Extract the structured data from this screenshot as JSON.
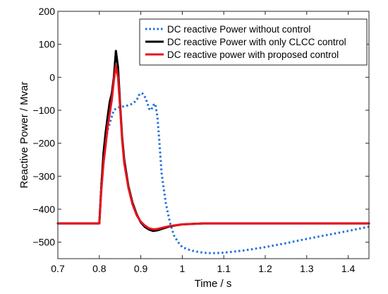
{
  "chart_data": {
    "type": "line",
    "xlabel": "Time / s",
    "ylabel": "Reactive Power / Mvar",
    "xlim": [
      0.7,
      1.45
    ],
    "ylim": [
      -550,
      200
    ],
    "xticks": [
      0.7,
      0.8,
      0.9,
      1,
      1.1,
      1.2,
      1.3,
      1.4
    ],
    "xtick_labels": [
      "0.7",
      "0.8",
      "0.9",
      "1",
      "1.1",
      "1.2",
      "1.3",
      "1.4"
    ],
    "yticks": [
      200,
      100,
      0,
      -100,
      -200,
      -300,
      -400,
      -500
    ],
    "ytick_labels": [
      "200",
      "100",
      "0",
      "−100",
      "−200",
      "−300",
      "−400",
      "−500"
    ],
    "grid": false,
    "legend_position": "top-right",
    "series": [
      {
        "name": "DC reactive Power without control",
        "color": "#1f6fdc",
        "style": "dotted",
        "x": [
          0.7,
          0.79,
          0.8,
          0.805,
          0.81,
          0.815,
          0.82,
          0.825,
          0.83,
          0.835,
          0.84,
          0.845,
          0.85,
          0.86,
          0.87,
          0.88,
          0.89,
          0.895,
          0.9,
          0.905,
          0.91,
          0.915,
          0.92,
          0.925,
          0.93,
          0.935,
          0.94,
          0.945,
          0.95,
          0.96,
          0.97,
          0.98,
          0.99,
          1.0,
          1.02,
          1.04,
          1.06,
          1.08,
          1.1,
          1.15,
          1.2,
          1.25,
          1.3,
          1.35,
          1.4,
          1.45
        ],
        "y": [
          -443,
          -443,
          -443,
          -320,
          -260,
          -200,
          -160,
          -140,
          -120,
          -100,
          -95,
          -92,
          -90,
          -88,
          -85,
          -80,
          -70,
          -55,
          -48,
          -50,
          -60,
          -75,
          -95,
          -100,
          -85,
          -80,
          -120,
          -200,
          -290,
          -380,
          -440,
          -480,
          -500,
          -515,
          -525,
          -530,
          -533,
          -533,
          -532,
          -525,
          -515,
          -503,
          -490,
          -478,
          -466,
          -453
        ]
      },
      {
        "name": "DC reactive Power with only CLCC control",
        "color": "#000000",
        "style": "solid",
        "x": [
          0.7,
          0.795,
          0.8,
          0.805,
          0.81,
          0.815,
          0.82,
          0.825,
          0.83,
          0.835,
          0.84,
          0.845,
          0.85,
          0.855,
          0.86,
          0.87,
          0.88,
          0.89,
          0.9,
          0.91,
          0.92,
          0.93,
          0.94,
          0.95,
          0.97,
          1.0,
          1.05,
          1.1,
          1.2,
          1.3,
          1.45
        ],
        "y": [
          -443,
          -443,
          -443,
          -330,
          -230,
          -170,
          -120,
          -75,
          -50,
          0,
          80,
          30,
          -80,
          -180,
          -250,
          -330,
          -380,
          -415,
          -440,
          -454,
          -462,
          -466,
          -464,
          -460,
          -452,
          -446,
          -443,
          -443,
          -443,
          -443,
          -443
        ]
      },
      {
        "name": "DC reactive power with proposed control",
        "color": "#e8111c",
        "style": "solid",
        "x": [
          0.7,
          0.795,
          0.8,
          0.805,
          0.81,
          0.815,
          0.82,
          0.825,
          0.83,
          0.835,
          0.84,
          0.845,
          0.85,
          0.855,
          0.86,
          0.87,
          0.88,
          0.89,
          0.9,
          0.91,
          0.92,
          0.93,
          0.94,
          0.95,
          0.97,
          1.0,
          1.05,
          1.1,
          1.2,
          1.3,
          1.45
        ],
        "y": [
          -443,
          -443,
          -443,
          -340,
          -260,
          -210,
          -150,
          -110,
          -70,
          -10,
          35,
          0,
          -90,
          -190,
          -260,
          -335,
          -385,
          -418,
          -438,
          -450,
          -458,
          -461,
          -460,
          -457,
          -451,
          -446,
          -443,
          -443,
          -443,
          -443,
          -443
        ]
      }
    ]
  }
}
